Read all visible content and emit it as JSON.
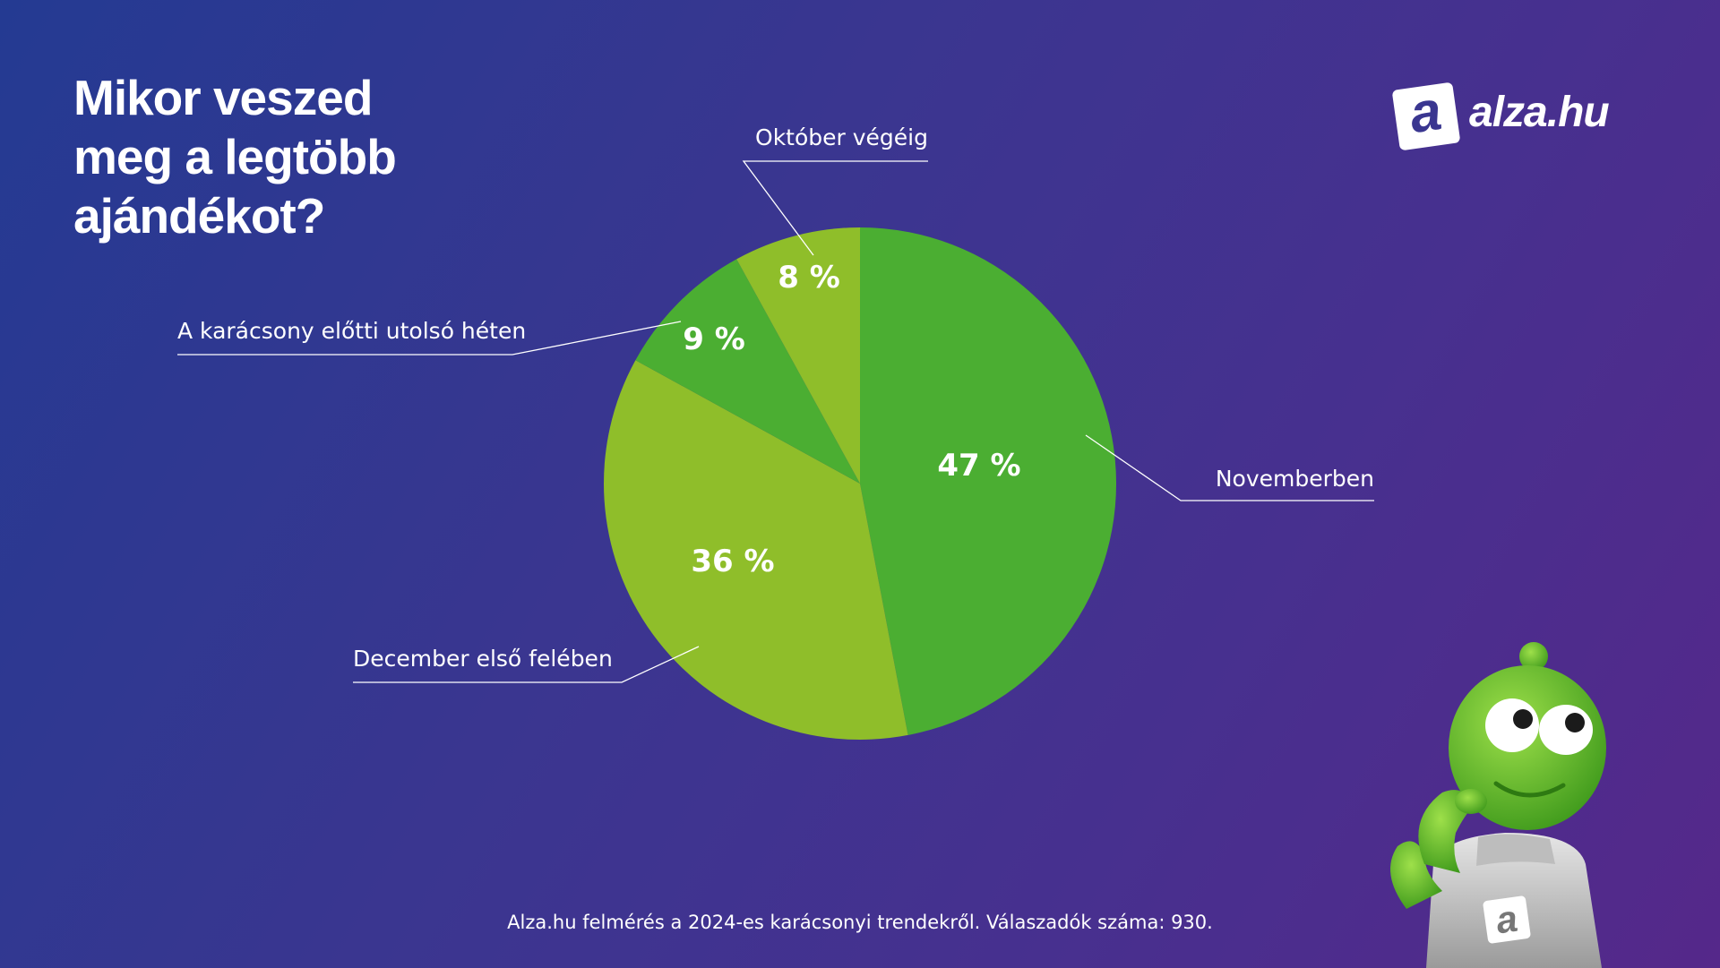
{
  "title_lines": [
    "Mikor veszed",
    "meg a legtöbb",
    "ajándékot?"
  ],
  "brand": {
    "badge_letter": "a",
    "name": "alza.hu"
  },
  "footer": "Alza.hu felmérés a 2024-es karácsonyi trendekről. Válaszadók száma: 930.",
  "colors": {
    "dark_green": "#4bae32",
    "light_green": "#8fbe2a",
    "text": "#ffffff",
    "leader": "#ffffff"
  },
  "chart_data": {
    "type": "pie",
    "title": "Mikor veszed meg a legtöbb ajándékot?",
    "start": "top, clockwise",
    "slices": [
      {
        "label": "Novemberben",
        "value": 47,
        "display": "47 %",
        "color": "#4bae32"
      },
      {
        "label": "December első felében",
        "value": 36,
        "display": "36 %",
        "color": "#8fbe2a"
      },
      {
        "label": "A karácsony előtti utolsó héten",
        "value": 9,
        "display": "9 %",
        "color": "#4bae32"
      },
      {
        "label": "Október végéig",
        "value": 8,
        "display": "8 %",
        "color": "#8fbe2a"
      }
    ]
  }
}
